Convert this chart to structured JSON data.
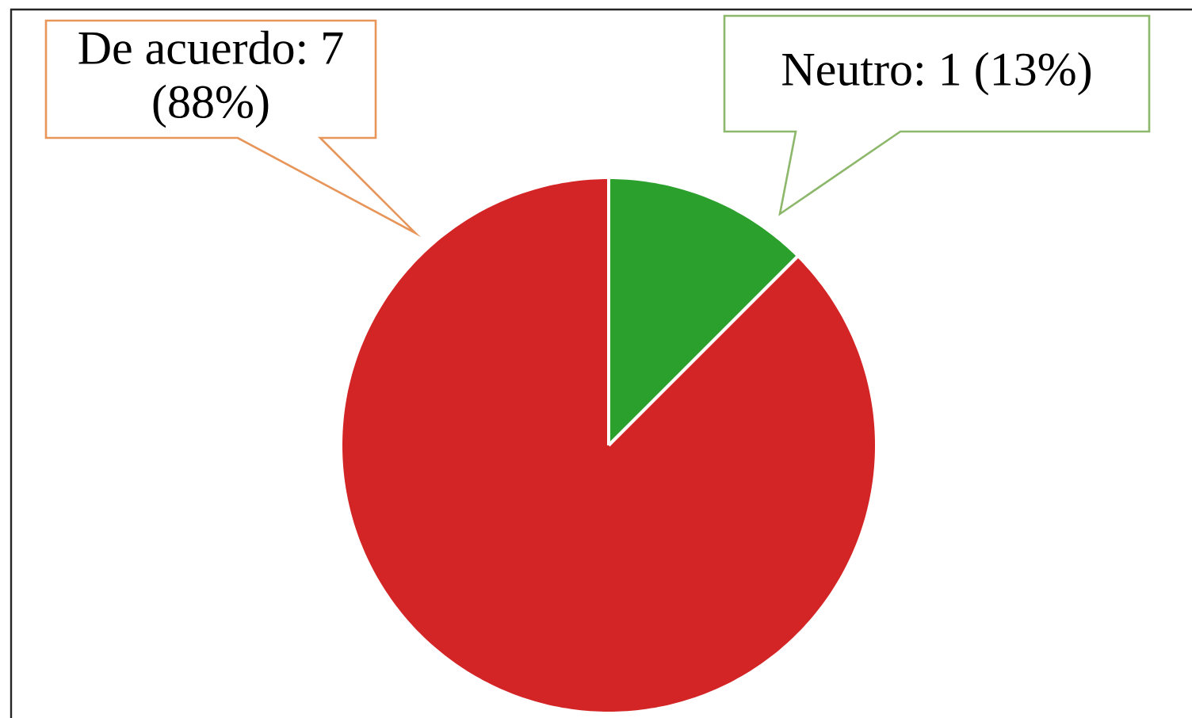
{
  "chart_data": {
    "type": "pie",
    "categories": [
      "Neutro: 1 (13%)",
      "De acuerdo: 7 (88%)"
    ],
    "values": [
      1,
      7
    ],
    "colors": [
      "#2ca02c",
      "#d42526"
    ]
  }
}
